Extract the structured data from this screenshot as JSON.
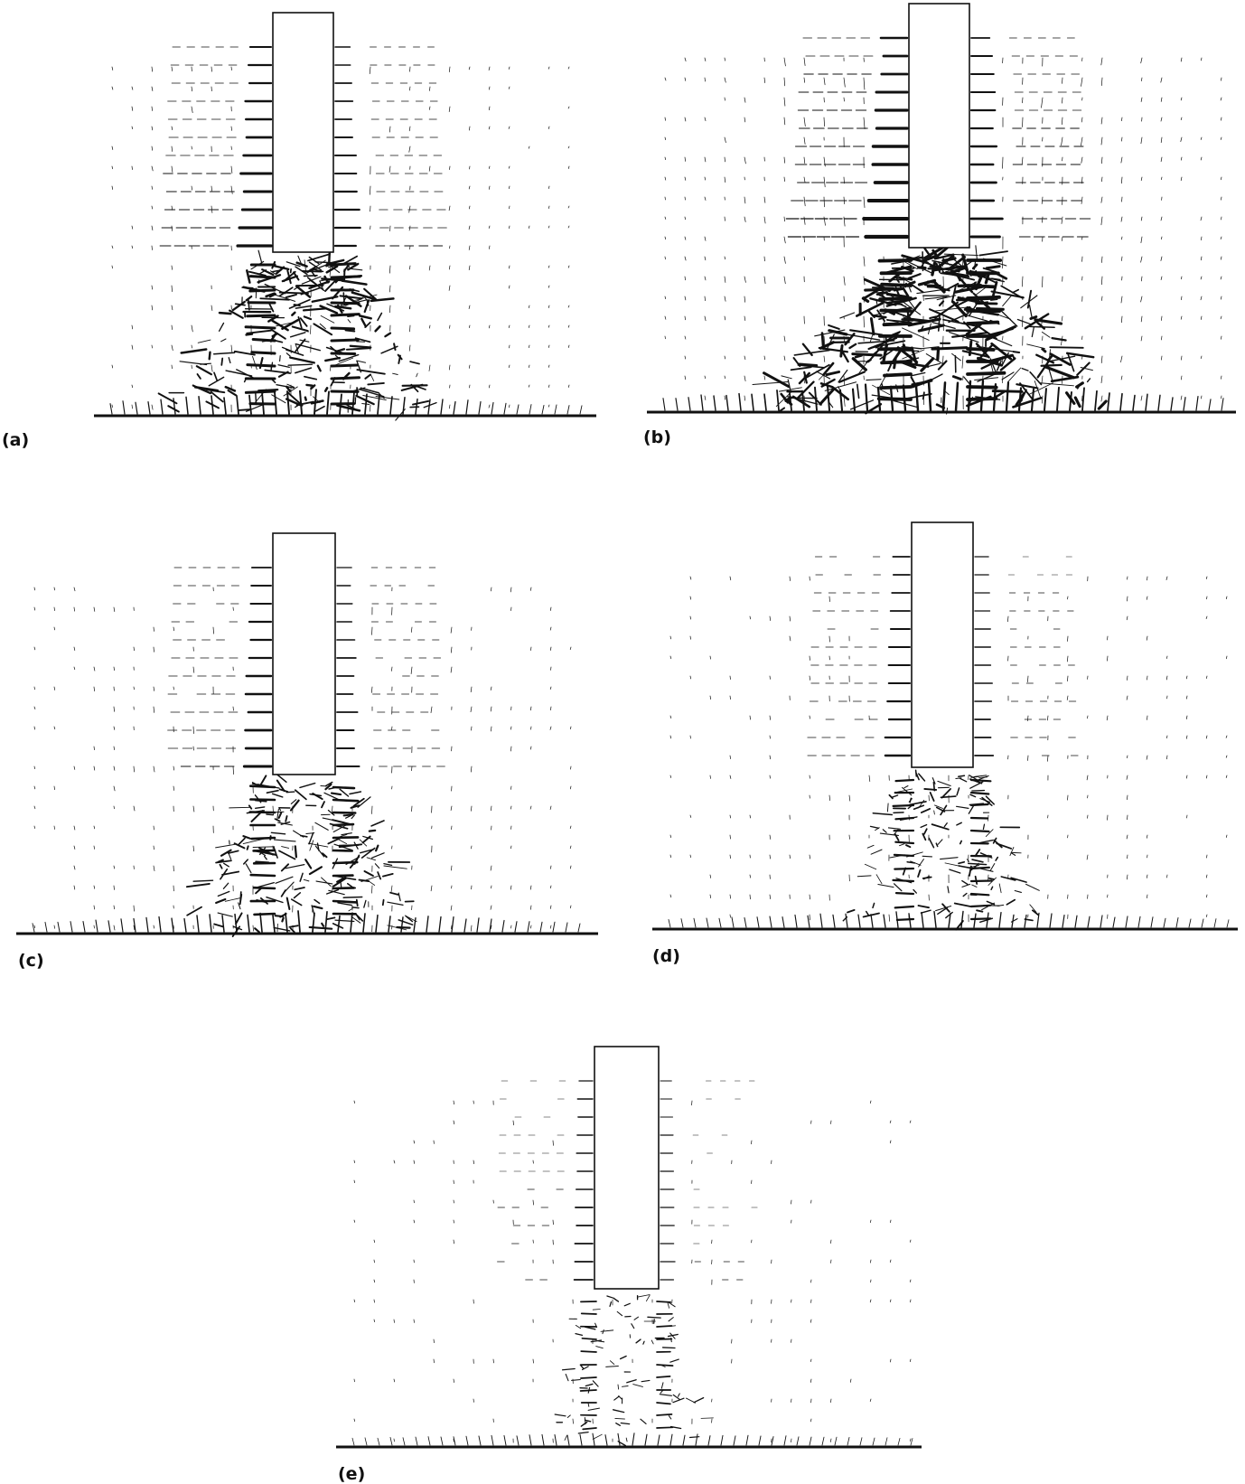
{
  "figure": {
    "background_color": "#ffffff",
    "ink_color": "#111111",
    "panels": [
      {
        "id": "a",
        "label": "(a)"
      },
      {
        "id": "b",
        "label": "(b)"
      },
      {
        "id": "c",
        "label": "(c)"
      },
      {
        "id": "d",
        "label": "(d)"
      },
      {
        "id": "e",
        "label": "(e)"
      }
    ]
  }
}
